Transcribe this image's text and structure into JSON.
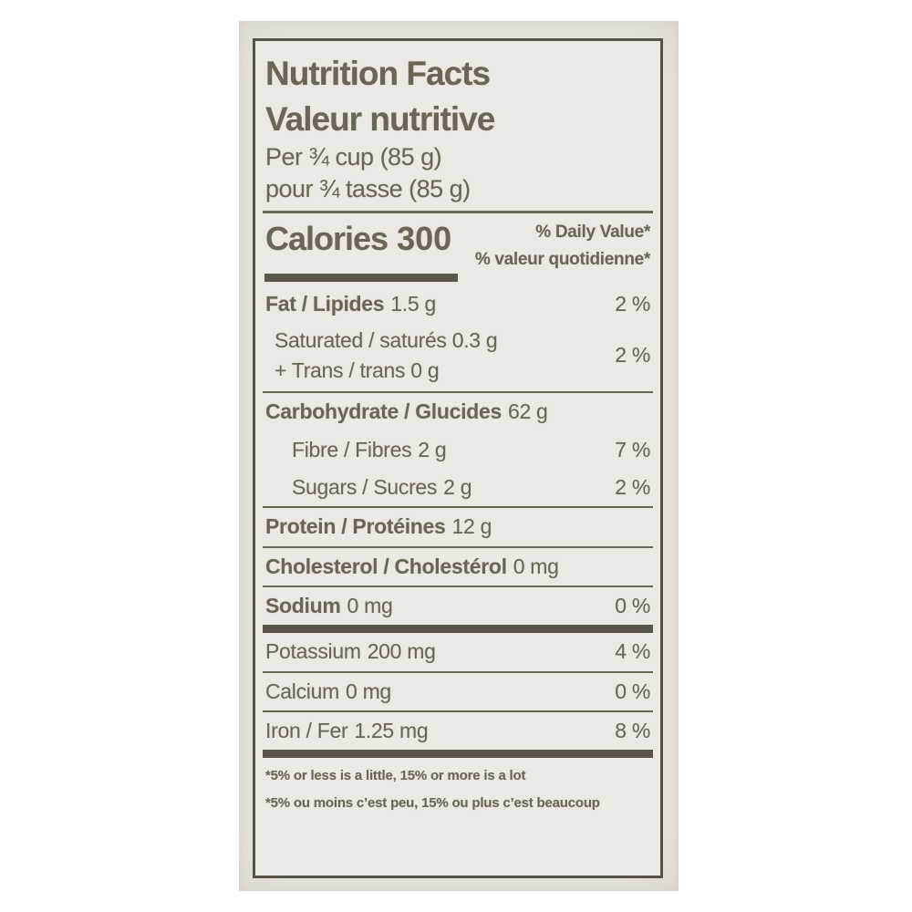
{
  "colors": {
    "photo_bg": "#e9e5e0",
    "paper": "#ece8e3",
    "ink": "#6c6557",
    "bar": "#5a544a",
    "border": "#565046"
  },
  "label": {
    "title_en": "Nutrition Facts",
    "title_fr": "Valeur nutritive",
    "serving_en": "Per ¾ cup (85 g)",
    "serving_fr": "pour ¾ tasse (85 g)",
    "calories": {
      "name": "Calories",
      "value": "300"
    },
    "daily_value_head_en": "% Daily Value*",
    "daily_value_head_fr": "% valeur quotidienne*",
    "rows": [
      {
        "name": "Fat / Lipides",
        "value": "1.5 g",
        "dv": "2 %"
      },
      {
        "line1": "Saturated / saturés 0.3 g",
        "line2": "+ Trans / trans 0 g",
        "dv": "2 %"
      },
      {
        "name": "Carbohydrate / Glucides",
        "value": "62 g",
        "dv": ""
      },
      {
        "name": "Fibre / Fibres",
        "value": "2 g",
        "dv": "7 %"
      },
      {
        "name": "Sugars / Sucres",
        "value": "2 g",
        "dv": "2 %"
      },
      {
        "name": "Protein / Protéines",
        "value": "12 g",
        "dv": ""
      },
      {
        "name": "Cholesterol / Cholestérol",
        "value": "0 mg",
        "dv": ""
      },
      {
        "name": "Sodium",
        "value": "0 mg",
        "dv": "0 %"
      },
      {
        "name": "Potassium",
        "value": "200 mg",
        "dv": "4 %"
      },
      {
        "name": "Calcium",
        "value": "0 mg",
        "dv": "0 %"
      },
      {
        "name": "Iron / Fer",
        "value": "1.25 mg",
        "dv": "8 %"
      }
    ],
    "footnote_en": "*5% or less is a little, 15% or more is a lot",
    "footnote_fr": "*5% ou moins c’est peu, 15% ou plus c’est beaucoup"
  }
}
